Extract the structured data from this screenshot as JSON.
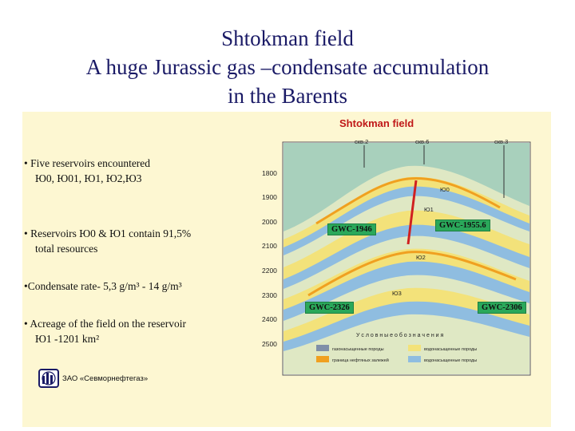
{
  "title": {
    "line1": "Shtokman field",
    "line2": "A huge Jurassic gas –condensate accumulation",
    "line3": "in the Barents"
  },
  "bullets": {
    "b1_line1": "• Five reservoirs encountered",
    "b1_line2": "Ю0, Ю01, Ю1, Ю2,Ю3",
    "b2_line1": "• Reservoirs Ю0 & Ю1 contain 91,5%",
    "b2_line2": "total resources",
    "b3": "•Condensate rate- 5,3 g/m³ - 14 g/m³",
    "b4_line1": "• Acreage of the field on the reservoir",
    "b4_line2": "Ю1 -1201 km²"
  },
  "company": "ЗАО «Севморнефтегаз»",
  "diagram": {
    "title": "Shtokman field",
    "wells": [
      "скв.2",
      "скв.6",
      "скв.3"
    ],
    "depth_ticks": [
      "1800",
      "1900",
      "2000",
      "2100",
      "2200",
      "2300",
      "2400",
      "2500"
    ],
    "gwc": {
      "upper_left": "GWC-1946",
      "upper_right": "GWC-1955.6",
      "lower_left": "GWC-2326",
      "lower_right": "GWC-2306"
    },
    "reservoirs": [
      "Ю0",
      "Ю1",
      "Ю2",
      "Ю3"
    ],
    "legend": {
      "title": "У с л о в н ы е   о б о з н а ч е н и я",
      "item1": "газонасыщенные породы",
      "item2": "водонасыщенные породы",
      "item3": "граница нефтяных залежей",
      "item4": "водонасыщенные породы",
      "colors": {
        "gas": "#7f8fa8",
        "water": "#f3e27a",
        "boundary": "#f0a020",
        "aquifer": "#8fbde0"
      }
    },
    "colors": {
      "overburden": "#a8d0bc",
      "gas": "#f3e27a",
      "water": "#8fbde0",
      "shale": "#dfe8c4",
      "accent_line": "#d02020",
      "gwc_bg": "#2aa85a"
    }
  }
}
